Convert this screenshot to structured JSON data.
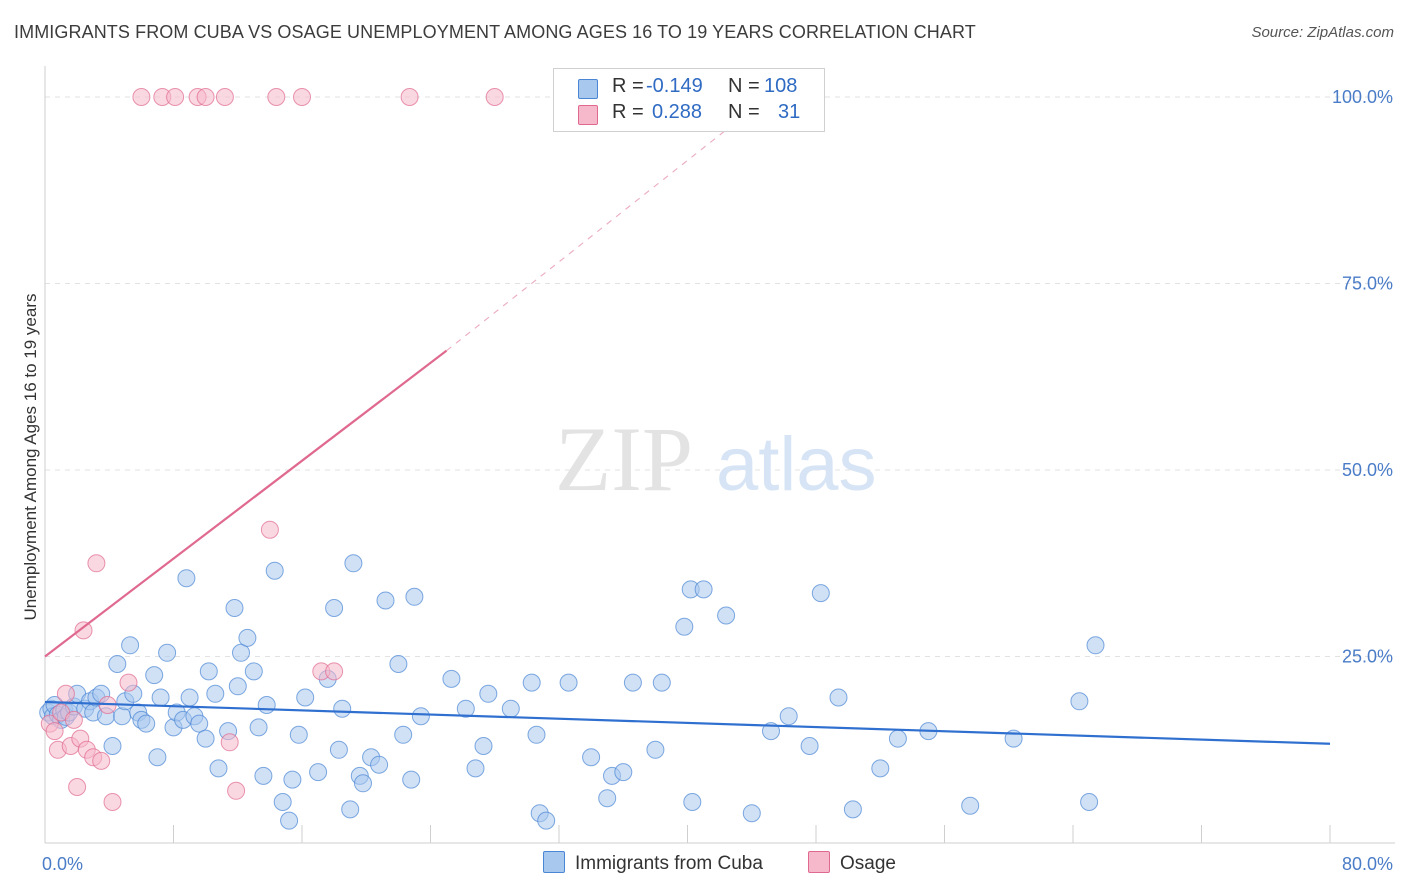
{
  "header": {
    "title": "IMMIGRANTS FROM CUBA VS OSAGE UNEMPLOYMENT AMONG AGES 16 TO 19 YEARS CORRELATION CHART",
    "source": "Source: ZipAtlas.com"
  },
  "watermark": {
    "zip": "ZIP",
    "atlas": "atlas"
  },
  "legend": {
    "rows": [
      {
        "r_label": "R =",
        "r_value": "-0.149",
        "n_label": "N =",
        "n_value": "108",
        "color": "#a9c8ee"
      },
      {
        "r_label": "R =",
        "r_value": "0.288",
        "n_label": "N =",
        "n_value": "31",
        "color": "#f6b8cb"
      }
    ]
  },
  "bottom_legend": {
    "items": [
      {
        "label": "Immigrants from Cuba",
        "color": "#a9c8ee"
      },
      {
        "label": "Osage",
        "color": "#f6b8cb"
      }
    ]
  },
  "chart_data": {
    "type": "scatter",
    "title": "IMMIGRANTS FROM CUBA VS OSAGE UNEMPLOYMENT AMONG AGES 16 TO 19 YEARS CORRELATION CHART",
    "xlabel": "",
    "ylabel": "Unemployment Among Ages 16 to 19 years",
    "xlim": [
      0,
      80
    ],
    "ylim": [
      0,
      100
    ],
    "x_tick_labels": [
      "0.0%",
      "80.0%"
    ],
    "y_ticks": [
      25,
      50,
      75,
      100
    ],
    "y_tick_labels": [
      "25.0%",
      "50.0%",
      "75.0%",
      "100.0%"
    ],
    "grid": true,
    "series": [
      {
        "name": "Immigrants from Cuba",
        "color": "#4a86d4",
        "fill": "#a9c8ee",
        "trend": {
          "x": [
            0,
            80
          ],
          "y": [
            18.9,
            13.3
          ],
          "style": "solid"
        },
        "points": [
          [
            0.2,
            17.5
          ],
          [
            0.4,
            18.0
          ],
          [
            0.5,
            17.0
          ],
          [
            0.6,
            18.5
          ],
          [
            0.8,
            17.2
          ],
          [
            1.0,
            16.5
          ],
          [
            1.2,
            17.8
          ],
          [
            1.3,
            16.9
          ],
          [
            1.5,
            17.5
          ],
          [
            1.8,
            18.3
          ],
          [
            2.0,
            20.0
          ],
          [
            2.5,
            18.0
          ],
          [
            2.8,
            19.0
          ],
          [
            3.0,
            17.5
          ],
          [
            3.2,
            19.5
          ],
          [
            3.5,
            20.0
          ],
          [
            3.8,
            17.0
          ],
          [
            4.2,
            13.0
          ],
          [
            4.5,
            24.0
          ],
          [
            4.8,
            17.0
          ],
          [
            5.0,
            19.0
          ],
          [
            5.3,
            26.5
          ],
          [
            5.5,
            20.0
          ],
          [
            5.8,
            17.5
          ],
          [
            6.0,
            16.5
          ],
          [
            6.3,
            16.0
          ],
          [
            6.8,
            22.5
          ],
          [
            7.0,
            11.5
          ],
          [
            7.2,
            19.5
          ],
          [
            7.6,
            25.5
          ],
          [
            8.0,
            15.5
          ],
          [
            8.2,
            17.5
          ],
          [
            8.6,
            16.5
          ],
          [
            8.8,
            35.5
          ],
          [
            9.0,
            19.5
          ],
          [
            9.3,
            17.0
          ],
          [
            9.6,
            16.0
          ],
          [
            10.0,
            14.0
          ],
          [
            10.2,
            23.0
          ],
          [
            10.6,
            20.0
          ],
          [
            10.8,
            10.0
          ],
          [
            11.4,
            15.0
          ],
          [
            11.8,
            31.5
          ],
          [
            12.0,
            21.0
          ],
          [
            12.2,
            25.5
          ],
          [
            12.6,
            27.5
          ],
          [
            13.0,
            23.0
          ],
          [
            13.3,
            15.5
          ],
          [
            13.6,
            9.0
          ],
          [
            13.8,
            18.5
          ],
          [
            14.3,
            36.5
          ],
          [
            14.8,
            5.5
          ],
          [
            15.2,
            3.0
          ],
          [
            15.4,
            8.5
          ],
          [
            15.8,
            14.5
          ],
          [
            16.2,
            19.5
          ],
          [
            17.0,
            9.5
          ],
          [
            17.6,
            22.0
          ],
          [
            18.0,
            31.5
          ],
          [
            18.3,
            12.5
          ],
          [
            18.5,
            18.0
          ],
          [
            19.0,
            4.5
          ],
          [
            19.2,
            37.5
          ],
          [
            19.6,
            9.0
          ],
          [
            19.8,
            8.0
          ],
          [
            20.3,
            11.5
          ],
          [
            20.8,
            10.5
          ],
          [
            21.2,
            32.5
          ],
          [
            22.0,
            24.0
          ],
          [
            22.3,
            14.5
          ],
          [
            22.8,
            8.5
          ],
          [
            23.0,
            33.0
          ],
          [
            23.4,
            17.0
          ],
          [
            25.3,
            22.0
          ],
          [
            26.2,
            18.0
          ],
          [
            26.8,
            10.0
          ],
          [
            27.3,
            13.0
          ],
          [
            27.6,
            20.0
          ],
          [
            29.0,
            18.0
          ],
          [
            30.3,
            21.5
          ],
          [
            30.6,
            14.5
          ],
          [
            30.8,
            4.0
          ],
          [
            31.2,
            3.0
          ],
          [
            32.6,
            21.5
          ],
          [
            34.0,
            11.5
          ],
          [
            35.0,
            6.0
          ],
          [
            35.3,
            9.0
          ],
          [
            36.0,
            9.5
          ],
          [
            36.6,
            21.5
          ],
          [
            38.0,
            12.5
          ],
          [
            38.4,
            21.5
          ],
          [
            39.8,
            29.0
          ],
          [
            40.2,
            34.0
          ],
          [
            40.3,
            5.5
          ],
          [
            41.0,
            34.0
          ],
          [
            42.4,
            30.5
          ],
          [
            44.0,
            4.0
          ],
          [
            45.2,
            15.0
          ],
          [
            46.3,
            17.0
          ],
          [
            47.6,
            13.0
          ],
          [
            48.3,
            33.5
          ],
          [
            49.4,
            19.5
          ],
          [
            50.3,
            4.5
          ],
          [
            52.0,
            10.0
          ],
          [
            53.1,
            14.0
          ],
          [
            55.0,
            15.0
          ],
          [
            57.6,
            5.0
          ],
          [
            60.3,
            14.0
          ],
          [
            64.4,
            19.0
          ],
          [
            65.0,
            5.5
          ],
          [
            65.4,
            26.5
          ]
        ]
      },
      {
        "name": "Osage",
        "color": "#e06a8f",
        "fill": "#f6b8cb",
        "trend": {
          "x": [
            0,
            25,
            45
          ],
          "y": [
            25,
            66,
            100
          ],
          "style": "solid-then-dashed"
        },
        "points": [
          [
            0.3,
            16.0
          ],
          [
            0.6,
            15.0
          ],
          [
            0.8,
            12.5
          ],
          [
            1.0,
            17.5
          ],
          [
            1.3,
            20.0
          ],
          [
            1.6,
            13.0
          ],
          [
            1.8,
            16.5
          ],
          [
            2.0,
            7.5
          ],
          [
            2.2,
            14.0
          ],
          [
            2.4,
            28.5
          ],
          [
            2.6,
            12.5
          ],
          [
            3.0,
            11.5
          ],
          [
            3.2,
            37.5
          ],
          [
            3.5,
            11.0
          ],
          [
            3.9,
            18.5
          ],
          [
            4.2,
            5.5
          ],
          [
            5.2,
            21.5
          ],
          [
            6.0,
            100.0
          ],
          [
            7.3,
            100.0
          ],
          [
            8.1,
            100.0
          ],
          [
            9.5,
            100.0
          ],
          [
            10.0,
            100.0
          ],
          [
            11.2,
            100.0
          ],
          [
            11.5,
            13.5
          ],
          [
            11.9,
            7.0
          ],
          [
            14.0,
            42.0
          ],
          [
            14.4,
            100.0
          ],
          [
            16.0,
            100.0
          ],
          [
            17.2,
            23.0
          ],
          [
            18.0,
            23.0
          ],
          [
            22.7,
            100.0
          ],
          [
            28.0,
            100.0
          ]
        ]
      }
    ]
  }
}
